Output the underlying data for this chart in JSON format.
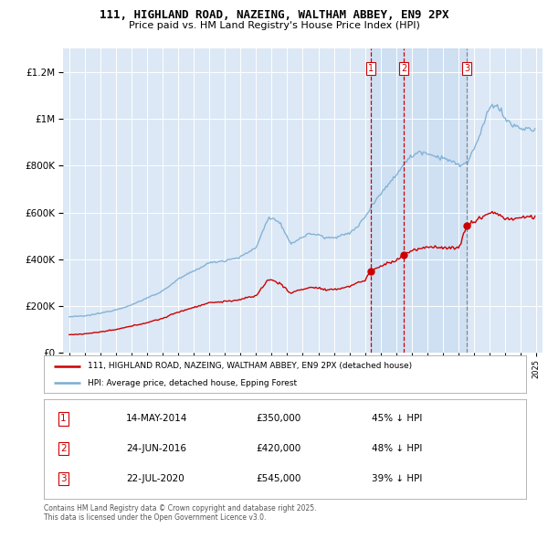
{
  "title1": "111, HIGHLAND ROAD, NAZEING, WALTHAM ABBEY, EN9 2PX",
  "title2": "Price paid vs. HM Land Registry's House Price Index (HPI)",
  "bg_color": "#dce8f5",
  "fig_bg": "#ffffff",
  "transaction_prices": [
    350000,
    420000,
    545000
  ],
  "transaction_labels": [
    "1",
    "2",
    "3"
  ],
  "transaction_years": [
    2014.37,
    2016.48,
    2020.55
  ],
  "table_rows": [
    [
      "1",
      "14-MAY-2014",
      "£350,000",
      "45% ↓ HPI"
    ],
    [
      "2",
      "24-JUN-2016",
      "£420,000",
      "48% ↓ HPI"
    ],
    [
      "3",
      "22-JUL-2020",
      "£545,000",
      "39% ↓ HPI"
    ]
  ],
  "footer": "Contains HM Land Registry data © Crown copyright and database right 2025.\nThis data is licensed under the Open Government Licence v3.0.",
  "legend_line1": "111, HIGHLAND ROAD, NAZEING, WALTHAM ABBEY, EN9 2PX (detached house)",
  "legend_line2": "HPI: Average price, detached house, Epping Forest",
  "red_color": "#cc0000",
  "blue_color": "#7aadd4",
  "shade_color": "#dce8f5",
  "ylim": [
    0,
    1300000
  ],
  "yticks": [
    0,
    200000,
    400000,
    600000,
    800000,
    1000000,
    1200000
  ],
  "xlim_left": 1994.6,
  "xlim_right": 2025.4
}
